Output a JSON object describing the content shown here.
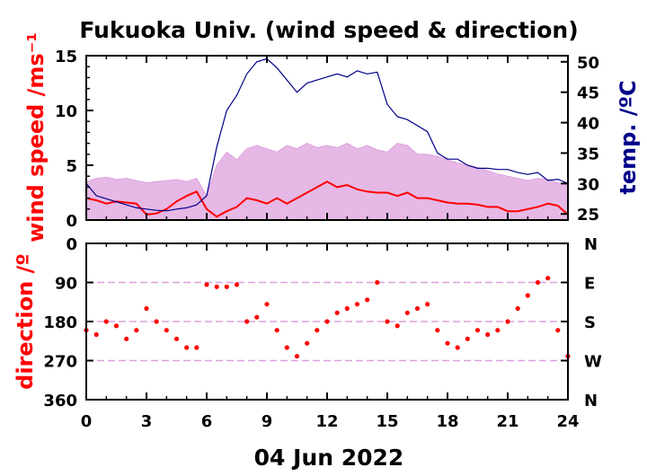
{
  "title": "Fukuoka Univ. (wind speed & direction)",
  "date_label": "04 Jun 2022",
  "colors": {
    "gust": "#dda0dd",
    "wind": "#ff0000",
    "temp": "#00008b",
    "axis": "#000000",
    "grid": "#dda0dd"
  },
  "chart_data": [
    {
      "type": "line",
      "x": [
        0,
        0.5,
        1,
        1.5,
        2,
        2.5,
        3,
        3.5,
        4,
        4.5,
        5,
        5.5,
        6,
        6.5,
        7,
        7.5,
        8,
        8.5,
        9,
        9.5,
        10,
        10.5,
        11,
        11.5,
        12,
        12.5,
        13,
        13.5,
        14,
        14.5,
        15,
        15.5,
        16,
        16.5,
        17,
        17.5,
        18,
        18.5,
        19,
        19.5,
        20,
        20.5,
        21,
        21.5,
        22,
        22.5,
        23,
        23.5,
        24
      ],
      "xlabel": "",
      "xticks": [
        "0",
        "3",
        "6",
        "9",
        "12",
        "15",
        "18",
        "21",
        "24"
      ],
      "xlim": [
        0,
        24
      ],
      "ylabel": "wind speed /ms⁻¹",
      "ylim": [
        0,
        15
      ],
      "yticks": [
        "0",
        "5",
        "10",
        "15"
      ],
      "y2label": "temp. /ºC",
      "y2lim": [
        24,
        51
      ],
      "y2ticks": [
        "25",
        "30",
        "35",
        "40",
        "45",
        "50"
      ],
      "series": [
        {
          "values": [
            3.5,
            3.8,
            3.9,
            3.7,
            3.8,
            3.6,
            3.4,
            3.5,
            3.6,
            3.7,
            3.5,
            3.8,
            2.2,
            5.0,
            6.2,
            5.5,
            6.5,
            6.8,
            6.5,
            6.2,
            6.8,
            6.5,
            7.0,
            6.6,
            6.8,
            6.6,
            7.0,
            6.5,
            6.8,
            6.4,
            6.2,
            7.0,
            6.8,
            6.0,
            6.0,
            5.8,
            5.5,
            5.2,
            5.0,
            4.8,
            4.5,
            4.2,
            4.0,
            3.8,
            3.6,
            3.8,
            3.7,
            3.4,
            3.2
          ]
        },
        {
          "values": [
            2.0,
            1.8,
            1.5,
            1.7,
            1.6,
            1.5,
            0.5,
            0.6,
            1.0,
            1.7,
            2.2,
            2.6,
            1.0,
            0.3,
            0.8,
            1.2,
            2.0,
            1.8,
            1.5,
            2.0,
            1.5,
            2.0,
            2.5,
            3.0,
            3.5,
            3.0,
            3.2,
            2.8,
            2.6,
            2.5,
            2.5,
            2.2,
            2.5,
            2.0,
            2.0,
            1.8,
            1.6,
            1.5,
            1.5,
            1.4,
            1.2,
            1.2,
            0.8,
            0.8,
            1.0,
            1.2,
            1.5,
            1.3,
            0.5
          ]
        },
        {
          "values": [
            30,
            28,
            27.5,
            27,
            26.5,
            26,
            25.8,
            25.6,
            25.5,
            25.8,
            26,
            26.5,
            28,
            36,
            42,
            44.5,
            48,
            50,
            50.5,
            49,
            47,
            45,
            46.5,
            47,
            47.5,
            48,
            47.5,
            48.5,
            48,
            48.3,
            43,
            41,
            40.5,
            39.5,
            38.5,
            35,
            34,
            34,
            33,
            32.5,
            32.5,
            32.3,
            32.3,
            31.8,
            31.5,
            31.8,
            30.5,
            30.7,
            30
          ]
        }
      ]
    },
    {
      "type": "scatter",
      "x": [
        0,
        0.5,
        1,
        1.5,
        2,
        2.5,
        3,
        3.5,
        4,
        4.5,
        5,
        5.5,
        6,
        6.5,
        7,
        7.5,
        8,
        8.5,
        9,
        9.5,
        10,
        10.5,
        11,
        11.5,
        12,
        12.5,
        13,
        13.5,
        14,
        14.5,
        15,
        15.5,
        16,
        16.5,
        17,
        17.5,
        18,
        18.5,
        19,
        19.5,
        20,
        20.5,
        21,
        21.5,
        22,
        22.5,
        23,
        23.5,
        24
      ],
      "xlabel": "",
      "xlim": [
        0,
        24
      ],
      "ylabel": "direction /º",
      "ylim": [
        0,
        360
      ],
      "yticks": [
        "0",
        "90",
        "180",
        "270",
        "360"
      ],
      "y2ticks": [
        "N",
        "E",
        "S",
        "W",
        "N"
      ],
      "series": [
        {
          "values": [
            200,
            210,
            180,
            190,
            220,
            200,
            150,
            180,
            200,
            220,
            240,
            240,
            95,
            100,
            100,
            95,
            180,
            170,
            140,
            200,
            240,
            260,
            230,
            200,
            180,
            160,
            150,
            140,
            130,
            90,
            180,
            190,
            160,
            150,
            140,
            200,
            230,
            240,
            220,
            200,
            210,
            200,
            180,
            150,
            120,
            90,
            80,
            200,
            260
          ]
        }
      ]
    }
  ]
}
